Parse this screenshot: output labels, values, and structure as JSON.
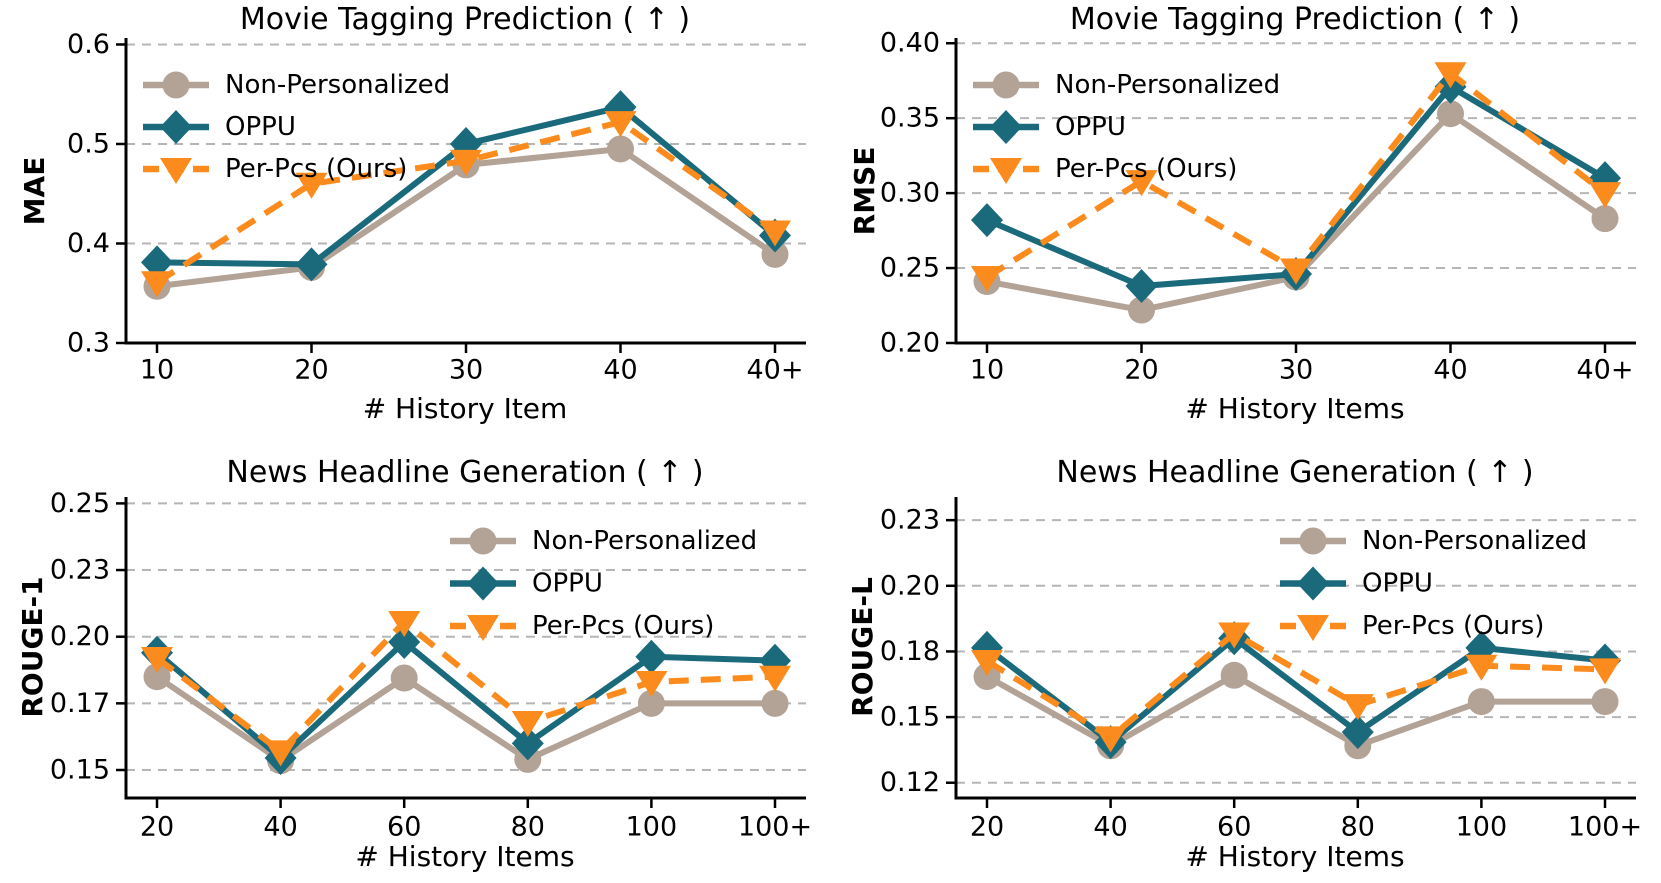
{
  "figure": {
    "description": "2x2 grid of line charts comparing personalization methods",
    "grid_color": "#b5b5b5",
    "axis_color": "#000000",
    "background": "#ffffff"
  },
  "legend": {
    "entries": [
      "Non-Personalized",
      "OPPU",
      "Per-Pcs (Ours)"
    ]
  },
  "chart_data": [
    {
      "id": "movie-mae",
      "type": "line",
      "title": "Movie Tagging Prediction ( ↑ )",
      "xlabel": "# History Item",
      "ylabel": "MAE",
      "categories": [
        "10",
        "20",
        "30",
        "40",
        "40+"
      ],
      "ylim": [
        0.3,
        0.6065
      ],
      "yticks": {
        "values": [
          0.3,
          0.4,
          0.5,
          0.6
        ],
        "labels": [
          "0.3",
          "0.4",
          "0.5",
          "0.6"
        ]
      },
      "grid": true,
      "legend_position": "upper-left",
      "series": [
        {
          "name": "Non-Personalized",
          "color": "#b3a296",
          "marker": "circle",
          "line": "solid",
          "values": [
            0.357,
            0.376,
            0.479,
            0.495,
            0.389
          ]
        },
        {
          "name": "OPPU",
          "color": "#1b6a7c",
          "marker": "diamond",
          "line": "solid",
          "values": [
            0.381,
            0.379,
            0.5,
            0.537,
            0.408
          ]
        },
        {
          "name": "Per-Pcs (Ours)",
          "color": "#fa8b1c",
          "marker": "triangle-down",
          "line": "dashed",
          "values": [
            0.361,
            0.46,
            0.483,
            0.522,
            0.412
          ]
        }
      ]
    },
    {
      "id": "movie-rmse",
      "type": "line",
      "title": "Movie Tagging Prediction ( ↑ )",
      "xlabel": "# History Items",
      "ylabel": "RMSE",
      "categories": [
        "10",
        "20",
        "30",
        "40",
        "40+"
      ],
      "ylim": [
        0.2,
        0.4035
      ],
      "yticks": {
        "values": [
          0.2,
          0.25,
          0.3,
          0.35,
          0.4
        ],
        "labels": [
          "0.20",
          "0.25",
          "0.30",
          "0.35",
          "0.40"
        ]
      },
      "grid": true,
      "legend_position": "upper-left",
      "series": [
        {
          "name": "Non-Personalized",
          "color": "#b3a296",
          "marker": "circle",
          "line": "solid",
          "values": [
            0.241,
            0.222,
            0.244,
            0.353,
            0.283
          ]
        },
        {
          "name": "OPPU",
          "color": "#1b6a7c",
          "marker": "diamond",
          "line": "solid",
          "values": [
            0.282,
            0.238,
            0.246,
            0.371,
            0.31
          ]
        },
        {
          "name": "Per-Pcs (Ours)",
          "color": "#fa8b1c",
          "marker": "triangle-down",
          "line": "dashed",
          "values": [
            0.244,
            0.308,
            0.249,
            0.38,
            0.3
          ]
        }
      ]
    },
    {
      "id": "news-rouge1",
      "type": "line",
      "title": "News Headline Generation ( ↑ )",
      "xlabel": "# History Items",
      "ylabel": "ROUGE-1",
      "categories": [
        "20",
        "40",
        "60",
        "80",
        "100",
        "100+"
      ],
      "ylim": [
        0.1395,
        0.2524
      ],
      "yticks": {
        "values": [
          0.15,
          0.175,
          0.2,
          0.225,
          0.25
        ],
        "labels": [
          "0.15",
          "0.17",
          "0.20",
          "0.23",
          "0.25"
        ]
      },
      "grid": true,
      "legend_position": "upper-right",
      "series": [
        {
          "name": "Non-Personalized",
          "color": "#b3a296",
          "marker": "circle",
          "line": "solid",
          "values": [
            0.185,
            0.1535,
            0.1845,
            0.154,
            0.175,
            0.175
          ]
        },
        {
          "name": "OPPU",
          "color": "#1b6a7c",
          "marker": "diamond",
          "line": "solid",
          "values": [
            0.194,
            0.1545,
            0.198,
            0.16,
            0.1925,
            0.191
          ]
        },
        {
          "name": "Per-Pcs (Ours)",
          "color": "#fa8b1c",
          "marker": "triangle-down",
          "line": "dashed",
          "values": [
            0.192,
            0.157,
            0.2055,
            0.168,
            0.183,
            0.185
          ]
        }
      ]
    },
    {
      "id": "news-rougel",
      "type": "line",
      "title": "News Headline Generation ( ↑ )",
      "xlabel": "# History Items",
      "ylabel": "ROUGE-L",
      "categories": [
        "20",
        "40",
        "60",
        "80",
        "100",
        "100+"
      ],
      "ylim": [
        0.1161,
        0.2422
      ],
      "yticks": {
        "values": [
          0.1225,
          0.15,
          0.1775,
          0.205,
          0.2325
        ],
        "labels": [
          "0.12",
          "0.15",
          "0.18",
          "0.20",
          "0.23"
        ]
      },
      "grid": true,
      "legend_position": "upper-right",
      "series": [
        {
          "name": "Non-Personalized",
          "color": "#b3a296",
          "marker": "circle",
          "line": "solid",
          "values": [
            0.167,
            0.138,
            0.1675,
            0.138,
            0.1565,
            0.1565
          ]
        },
        {
          "name": "OPPU",
          "color": "#1b6a7c",
          "marker": "diamond",
          "line": "solid",
          "values": [
            0.179,
            0.1395,
            0.183,
            0.1437,
            0.179,
            0.1737
          ]
        },
        {
          "name": "Per-Pcs (Ours)",
          "color": "#fa8b1c",
          "marker": "triangle-down",
          "line": "dashed",
          "values": [
            0.1735,
            0.1415,
            0.185,
            0.155,
            0.1715,
            0.17
          ]
        }
      ]
    }
  ]
}
